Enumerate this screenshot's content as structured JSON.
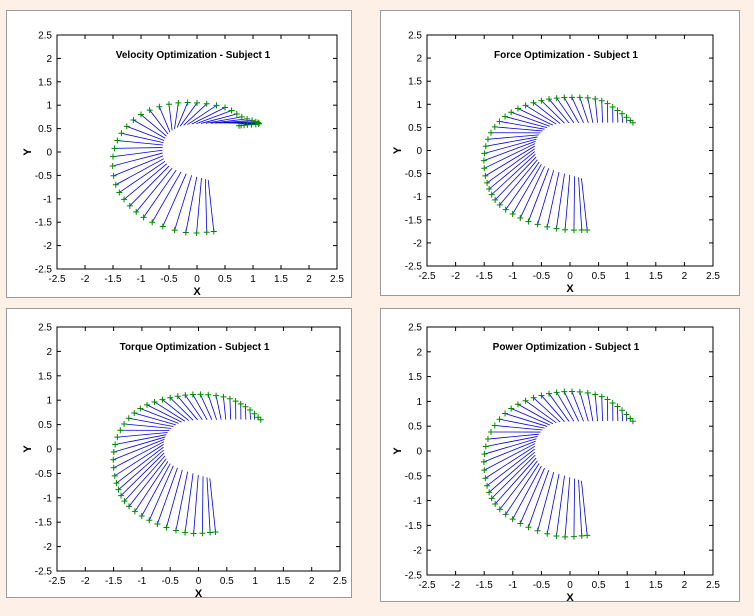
{
  "chart_data": [
    {
      "type": "line",
      "title": "Velocity Optimization - Subject 1",
      "xlabel": "X",
      "ylabel": "Y",
      "xlim": [
        -2.5,
        2.5
      ],
      "ylim": [
        -2.5,
        2.5
      ],
      "xticks": [
        "-2.5",
        "-2",
        "-1.5",
        "-1",
        "-0.5",
        "0",
        "0.5",
        "1",
        "1.5",
        "2",
        "2.5"
      ],
      "yticks": [
        "2.5",
        "2",
        "1.5",
        "1",
        "0.5",
        "0",
        "-0.5",
        "-1",
        "-1.5",
        "-2",
        "-2.5"
      ],
      "grid": false,
      "colors": {
        "links": "#0000dd",
        "markers": "#008800"
      },
      "inner_curve": {
        "x": [
          0.2,
          -0.5,
          -0.6,
          -0.3,
          0.4,
          1.0
        ],
        "y": [
          -0.6,
          -0.3,
          0.2,
          0.55,
          0.62,
          0.6
        ]
      },
      "outer_path": {
        "x": [
          0.3,
          -0.2,
          -0.8,
          -1.2,
          -1.45,
          -1.5,
          -1.35,
          -1.0,
          -0.5,
          0.0,
          0.5,
          0.8,
          1.05,
          1.1,
          0.9,
          0.75
        ],
        "y": [
          -1.7,
          -1.72,
          -1.5,
          -1.15,
          -0.7,
          -0.1,
          0.4,
          0.8,
          1.02,
          1.05,
          0.95,
          0.75,
          0.65,
          0.6,
          0.58,
          0.56
        ]
      }
    },
    {
      "type": "line",
      "title": "Force Optimization - Subject 1",
      "xlabel": "X",
      "ylabel": "Y",
      "xlim": [
        -2.5,
        2.5
      ],
      "ylim": [
        -2.5,
        2.5
      ],
      "xticks": [
        "-2.5",
        "-2",
        "-1.5",
        "-1",
        "-0.5",
        "0",
        "0.5",
        "1",
        "1.5",
        "2",
        "2.5"
      ],
      "yticks": [
        "2.5",
        "2",
        "1.5",
        "1",
        "0.5",
        "0",
        "-0.5",
        "-1",
        "-1.5",
        "-2",
        "-2.5"
      ],
      "grid": false,
      "colors": {
        "links": "#0000dd",
        "markers": "#008800"
      },
      "inner_curve": {
        "x": [
          0.2,
          -0.5,
          -0.6,
          -0.3,
          0.4,
          1.1
        ],
        "y": [
          -0.6,
          -0.3,
          0.2,
          0.55,
          0.6,
          0.6
        ]
      },
      "outer_path": {
        "x": [
          0.3,
          -0.2,
          -0.8,
          -1.25,
          -1.45,
          -1.5,
          -1.35,
          -1.0,
          -0.5,
          0.0,
          0.5,
          0.85,
          1.1
        ],
        "y": [
          -1.72,
          -1.7,
          -1.5,
          -1.15,
          -0.7,
          -0.1,
          0.45,
          0.85,
          1.08,
          1.15,
          1.1,
          0.85,
          0.6
        ]
      }
    },
    {
      "type": "line",
      "title": "Torque Optimization - Subject 1",
      "xlabel": "X",
      "ylabel": "Y",
      "xlim": [
        -2.5,
        2.5
      ],
      "ylim": [
        -2.5,
        2.5
      ],
      "xticks": [
        "-2.5",
        "-2",
        "-1.5",
        "-1",
        "-0.5",
        "0",
        "0.5",
        "1",
        "1.5",
        "2",
        "2.5"
      ],
      "yticks": [
        "2.5",
        "2",
        "1.5",
        "1",
        "0.5",
        "0",
        "-0.5",
        "-1",
        "-1.5",
        "-2",
        "-2.5"
      ],
      "grid": false,
      "colors": {
        "links": "#0000dd",
        "markers": "#008800"
      },
      "inner_curve": {
        "x": [
          0.2,
          -0.5,
          -0.6,
          -0.3,
          0.4,
          1.1
        ],
        "y": [
          -0.6,
          -0.3,
          0.2,
          0.55,
          0.6,
          0.6
        ]
      },
      "outer_path": {
        "x": [
          0.3,
          -0.2,
          -0.8,
          -1.25,
          -1.45,
          -1.5,
          -1.35,
          -1.0,
          -0.5,
          0.0,
          0.5,
          0.85,
          1.1
        ],
        "y": [
          -1.7,
          -1.72,
          -1.5,
          -1.15,
          -0.7,
          -0.1,
          0.45,
          0.85,
          1.05,
          1.12,
          1.05,
          0.85,
          0.6
        ]
      }
    },
    {
      "type": "line",
      "title": "Power Optimization - Subject 1",
      "xlabel": "X",
      "ylabel": "Y",
      "xlim": [
        -2.5,
        2.5
      ],
      "ylim": [
        -2.5,
        2.5
      ],
      "xticks": [
        "-2.5",
        "-2",
        "-1.5",
        "-1",
        "-0.5",
        "0",
        "0.5",
        "1",
        "1.5",
        "2",
        "2.5"
      ],
      "yticks": [
        "2.5",
        "2",
        "1.5",
        "1",
        "0.5",
        "0",
        "-0.5",
        "-1",
        "-1.5",
        "-2",
        "-2.5"
      ],
      "grid": false,
      "colors": {
        "links": "#0000dd",
        "markers": "#008800"
      },
      "inner_curve": {
        "x": [
          0.2,
          -0.5,
          -0.6,
          -0.3,
          0.4,
          1.1
        ],
        "y": [
          -0.6,
          -0.3,
          0.2,
          0.55,
          0.6,
          0.6
        ]
      },
      "outer_path": {
        "x": [
          0.3,
          -0.2,
          -0.8,
          -1.25,
          -1.45,
          -1.5,
          -1.35,
          -1.0,
          -0.5,
          0.0,
          0.5,
          0.85,
          1.1
        ],
        "y": [
          -1.7,
          -1.72,
          -1.5,
          -1.15,
          -0.7,
          -0.1,
          0.45,
          0.88,
          1.12,
          1.2,
          1.12,
          0.88,
          0.6
        ]
      }
    }
  ]
}
